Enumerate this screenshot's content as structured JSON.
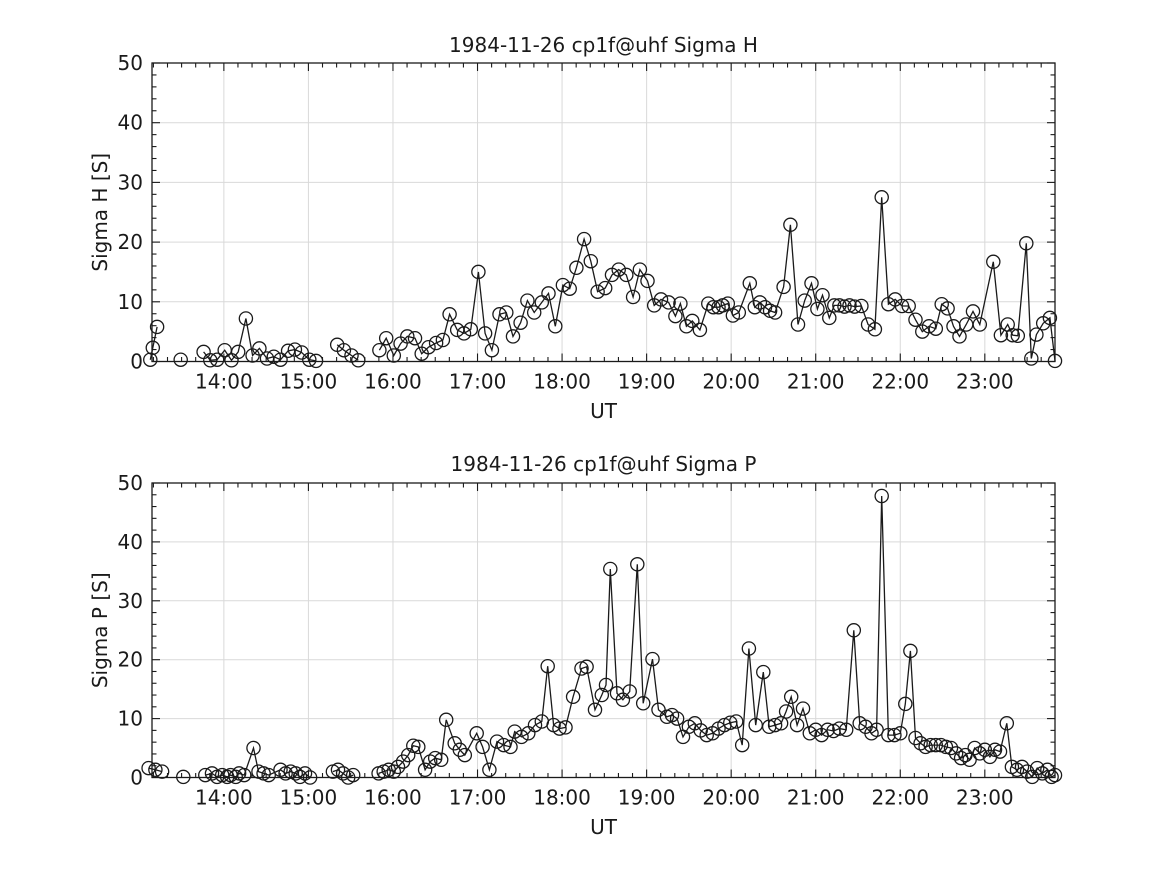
{
  "figure": {
    "background": "#ffffff",
    "x_axis_label": "UT",
    "x_tick_labels": [
      "14:00",
      "15:00",
      "16:00",
      "17:00",
      "18:00",
      "19:00",
      "20:00",
      "21:00",
      "22:00",
      "23:00"
    ],
    "y_tick_labels": [
      "0",
      "10",
      "20",
      "30",
      "40",
      "50"
    ]
  },
  "chart_data": [
    {
      "type": "line",
      "title": "1984-11-26  cp1f@uhf Sigma H",
      "xlabel": "UT",
      "ylabel": "Sigma H [S]",
      "xlim": [
        13.15,
        23.83
      ],
      "ylim": [
        0,
        50
      ],
      "x_ticks": [
        14,
        15,
        16,
        17,
        18,
        19,
        20,
        21,
        22,
        23
      ],
      "x_tick_labels": [
        "14:00",
        "15:00",
        "16:00",
        "17:00",
        "18:00",
        "19:00",
        "20:00",
        "21:00",
        "22:00",
        "23:00"
      ],
      "y_ticks": [
        0,
        10,
        20,
        30,
        40,
        50
      ],
      "y_tick_labels": [
        "0",
        "10",
        "20",
        "30",
        "40",
        "50"
      ],
      "grid": true,
      "legend": "none",
      "marker": "open-circle",
      "line_color": "#1a1a1a",
      "grid_color": "#d9d9d9",
      "points": [
        [
          13.13,
          0.3
        ],
        [
          13.16,
          2.3
        ],
        [
          13.21,
          5.8
        ],
        [
          13.35,
          null
        ],
        [
          13.49,
          0.3
        ],
        [
          13.62,
          null
        ],
        [
          13.76,
          1.6
        ],
        [
          13.84,
          0.2
        ],
        [
          13.92,
          0.3
        ],
        [
          14.01,
          1.9
        ],
        [
          14.09,
          0.2
        ],
        [
          14.17,
          1.6
        ],
        [
          14.26,
          7.2
        ],
        [
          14.34,
          1.0
        ],
        [
          14.42,
          2.2
        ],
        [
          14.51,
          0.5
        ],
        [
          14.59,
          0.8
        ],
        [
          14.67,
          0.3
        ],
        [
          14.76,
          1.8
        ],
        [
          14.84,
          2.0
        ],
        [
          14.92,
          1.5
        ],
        [
          15.01,
          0.3
        ],
        [
          15.09,
          0.1
        ],
        [
          15.2,
          null
        ],
        [
          15.34,
          2.8
        ],
        [
          15.42,
          1.9
        ],
        [
          15.51,
          1.0
        ],
        [
          15.59,
          0.2
        ],
        [
          15.7,
          null
        ],
        [
          15.84,
          1.9
        ],
        [
          15.92,
          3.9
        ],
        [
          16.01,
          1.0
        ],
        [
          16.09,
          3.0
        ],
        [
          16.17,
          4.2
        ],
        [
          16.26,
          3.9
        ],
        [
          16.34,
          1.3
        ],
        [
          16.42,
          2.4
        ],
        [
          16.51,
          3.1
        ],
        [
          16.59,
          3.6
        ],
        [
          16.67,
          7.9
        ],
        [
          16.76,
          5.3
        ],
        [
          16.84,
          4.7
        ],
        [
          16.92,
          5.4
        ],
        [
          17.01,
          15.0
        ],
        [
          17.09,
          4.7
        ],
        [
          17.17,
          1.9
        ],
        [
          17.26,
          7.9
        ],
        [
          17.34,
          8.2
        ],
        [
          17.42,
          4.2
        ],
        [
          17.51,
          6.5
        ],
        [
          17.59,
          10.2
        ],
        [
          17.67,
          8.2
        ],
        [
          17.76,
          9.9
        ],
        [
          17.84,
          11.4
        ],
        [
          17.92,
          5.9
        ],
        [
          18.01,
          12.8
        ],
        [
          18.09,
          12.2
        ],
        [
          18.17,
          15.7
        ],
        [
          18.26,
          20.5
        ],
        [
          18.34,
          16.8
        ],
        [
          18.42,
          11.7
        ],
        [
          18.51,
          12.3
        ],
        [
          18.59,
          14.5
        ],
        [
          18.67,
          15.4
        ],
        [
          18.76,
          14.5
        ],
        [
          18.84,
          10.8
        ],
        [
          18.92,
          15.4
        ],
        [
          19.01,
          13.5
        ],
        [
          19.09,
          9.4
        ],
        [
          19.17,
          10.4
        ],
        [
          19.26,
          9.9
        ],
        [
          19.34,
          7.6
        ],
        [
          19.4,
          9.7
        ],
        [
          19.47,
          5.9
        ],
        [
          19.54,
          6.8
        ],
        [
          19.63,
          5.3
        ],
        [
          19.73,
          9.7
        ],
        [
          19.79,
          9.1
        ],
        [
          19.85,
          9.1
        ],
        [
          19.9,
          9.4
        ],
        [
          19.96,
          9.7
        ],
        [
          20.02,
          7.7
        ],
        [
          20.09,
          8.2
        ],
        [
          20.22,
          13.1
        ],
        [
          20.28,
          9.1
        ],
        [
          20.34,
          9.9
        ],
        [
          20.4,
          9.1
        ],
        [
          20.46,
          8.5
        ],
        [
          20.52,
          8.2
        ],
        [
          20.62,
          12.5
        ],
        [
          20.7,
          22.9
        ],
        [
          20.79,
          6.2
        ],
        [
          20.87,
          10.2
        ],
        [
          20.95,
          13.1
        ],
        [
          21.02,
          8.8
        ],
        [
          21.08,
          11.1
        ],
        [
          21.16,
          7.3
        ],
        [
          21.22,
          9.4
        ],
        [
          21.28,
          9.4
        ],
        [
          21.34,
          9.2
        ],
        [
          21.4,
          9.4
        ],
        [
          21.46,
          9.2
        ],
        [
          21.54,
          9.3
        ],
        [
          21.62,
          6.2
        ],
        [
          21.7,
          5.4
        ],
        [
          21.78,
          27.5
        ],
        [
          21.86,
          9.6
        ],
        [
          21.94,
          10.4
        ],
        [
          22.02,
          9.3
        ],
        [
          22.1,
          9.3
        ],
        [
          22.18,
          7.0
        ],
        [
          22.26,
          5.0
        ],
        [
          22.34,
          5.9
        ],
        [
          22.42,
          5.5
        ],
        [
          22.49,
          9.6
        ],
        [
          22.56,
          8.9
        ],
        [
          22.63,
          5.9
        ],
        [
          22.7,
          4.2
        ],
        [
          22.78,
          6.2
        ],
        [
          22.86,
          8.4
        ],
        [
          22.94,
          6.2
        ],
        [
          23.1,
          16.7
        ],
        [
          23.19,
          4.4
        ],
        [
          23.27,
          6.2
        ],
        [
          23.33,
          4.4
        ],
        [
          23.39,
          4.3
        ],
        [
          23.49,
          19.8
        ],
        [
          23.55,
          0.5
        ],
        [
          23.61,
          4.5
        ],
        [
          23.69,
          6.4
        ],
        [
          23.77,
          7.3
        ],
        [
          23.83,
          0.1
        ]
      ]
    },
    {
      "type": "line",
      "title": "1984-11-26  cp1f@uhf Sigma P",
      "xlabel": "UT",
      "ylabel": "Sigma P [S]",
      "xlim": [
        13.15,
        23.83
      ],
      "ylim": [
        0,
        50
      ],
      "x_ticks": [
        14,
        15,
        16,
        17,
        18,
        19,
        20,
        21,
        22,
        23
      ],
      "x_tick_labels": [
        "14:00",
        "15:00",
        "16:00",
        "17:00",
        "18:00",
        "19:00",
        "20:00",
        "21:00",
        "22:00",
        "23:00"
      ],
      "y_ticks": [
        0,
        10,
        20,
        30,
        40,
        50
      ],
      "y_tick_labels": [
        "0",
        "10",
        "20",
        "30",
        "40",
        "50"
      ],
      "grid": true,
      "legend": "none",
      "marker": "open-circle",
      "line_color": "#1a1a1a",
      "grid_color": "#d9d9d9",
      "points": [
        [
          13.11,
          1.6
        ],
        [
          13.19,
          1.3
        ],
        [
          13.27,
          1.0
        ],
        [
          13.4,
          null
        ],
        [
          13.52,
          0.1
        ],
        [
          13.64,
          null
        ],
        [
          13.78,
          0.4
        ],
        [
          13.86,
          0.7
        ],
        [
          13.92,
          0.1
        ],
        [
          13.98,
          0.4
        ],
        [
          14.04,
          0.1
        ],
        [
          14.08,
          0.4
        ],
        [
          14.14,
          0.1
        ],
        [
          14.18,
          0.7
        ],
        [
          14.24,
          0.4
        ],
        [
          14.35,
          5.0
        ],
        [
          14.41,
          1.0
        ],
        [
          14.47,
          0.7
        ],
        [
          14.53,
          0.4
        ],
        [
          14.67,
          1.3
        ],
        [
          14.73,
          0.7
        ],
        [
          14.79,
          1.0
        ],
        [
          14.85,
          0.7
        ],
        [
          14.9,
          0.1
        ],
        [
          14.96,
          0.7
        ],
        [
          15.02,
          0.0
        ],
        [
          15.15,
          null
        ],
        [
          15.29,
          1.0
        ],
        [
          15.35,
          1.3
        ],
        [
          15.41,
          0.7
        ],
        [
          15.47,
          0.0
        ],
        [
          15.53,
          0.4
        ],
        [
          15.68,
          null
        ],
        [
          15.83,
          0.7
        ],
        [
          15.89,
          1.0
        ],
        [
          15.95,
          1.3
        ],
        [
          16.01,
          1.0
        ],
        [
          16.06,
          1.8
        ],
        [
          16.12,
          2.7
        ],
        [
          16.18,
          3.8
        ],
        [
          16.24,
          5.4
        ],
        [
          16.3,
          5.2
        ],
        [
          16.38,
          1.3
        ],
        [
          16.44,
          2.7
        ],
        [
          16.5,
          3.3
        ],
        [
          16.57,
          3.0
        ],
        [
          16.63,
          9.8
        ],
        [
          16.73,
          5.8
        ],
        [
          16.79,
          4.7
        ],
        [
          16.85,
          3.8
        ],
        [
          16.99,
          7.5
        ],
        [
          17.06,
          5.2
        ],
        [
          17.14,
          1.3
        ],
        [
          17.23,
          6.1
        ],
        [
          17.31,
          5.5
        ],
        [
          17.39,
          5.2
        ],
        [
          17.44,
          7.8
        ],
        [
          17.52,
          6.9
        ],
        [
          17.6,
          7.5
        ],
        [
          17.68,
          8.9
        ],
        [
          17.76,
          9.5
        ],
        [
          17.83,
          18.9
        ],
        [
          17.9,
          8.9
        ],
        [
          17.97,
          8.3
        ],
        [
          18.04,
          8.5
        ],
        [
          18.13,
          13.7
        ],
        [
          18.23,
          18.5
        ],
        [
          18.29,
          18.8
        ],
        [
          18.39,
          11.5
        ],
        [
          18.47,
          14.0
        ],
        [
          18.52,
          15.7
        ],
        [
          18.57,
          35.4
        ],
        [
          18.65,
          14.3
        ],
        [
          18.72,
          13.2
        ],
        [
          18.8,
          14.6
        ],
        [
          18.89,
          36.2
        ],
        [
          18.96,
          12.6
        ],
        [
          19.07,
          20.1
        ],
        [
          19.14,
          11.5
        ],
        [
          19.24,
          10.3
        ],
        [
          19.3,
          10.6
        ],
        [
          19.36,
          10.0
        ],
        [
          19.43,
          6.9
        ],
        [
          19.5,
          8.6
        ],
        [
          19.57,
          9.2
        ],
        [
          19.64,
          8.0
        ],
        [
          19.71,
          7.2
        ],
        [
          19.78,
          7.5
        ],
        [
          19.85,
          8.3
        ],
        [
          19.92,
          8.9
        ],
        [
          19.99,
          9.3
        ],
        [
          20.06,
          9.5
        ],
        [
          20.13,
          5.5
        ],
        [
          20.21,
          21.9
        ],
        [
          20.29,
          8.9
        ],
        [
          20.38,
          17.9
        ],
        [
          20.45,
          8.6
        ],
        [
          20.52,
          8.9
        ],
        [
          20.59,
          9.2
        ],
        [
          20.65,
          11.2
        ],
        [
          20.71,
          13.7
        ],
        [
          20.78,
          8.9
        ],
        [
          20.85,
          11.7
        ],
        [
          20.93,
          7.5
        ],
        [
          21.0,
          8.1
        ],
        [
          21.07,
          7.2
        ],
        [
          21.14,
          8.1
        ],
        [
          21.21,
          7.9
        ],
        [
          21.28,
          8.3
        ],
        [
          21.36,
          8.1
        ],
        [
          21.45,
          25.0
        ],
        [
          21.52,
          9.2
        ],
        [
          21.59,
          8.6
        ],
        [
          21.66,
          7.5
        ],
        [
          21.72,
          8.1
        ],
        [
          21.78,
          47.8
        ],
        [
          21.86,
          7.2
        ],
        [
          21.93,
          7.2
        ],
        [
          22.0,
          7.5
        ],
        [
          22.06,
          12.5
        ],
        [
          22.12,
          21.5
        ],
        [
          22.18,
          6.7
        ],
        [
          22.24,
          5.8
        ],
        [
          22.3,
          5.2
        ],
        [
          22.36,
          5.5
        ],
        [
          22.42,
          5.5
        ],
        [
          22.48,
          5.5
        ],
        [
          22.54,
          5.2
        ],
        [
          22.6,
          5.0
        ],
        [
          22.66,
          4.1
        ],
        [
          22.72,
          3.3
        ],
        [
          22.77,
          3.8
        ],
        [
          22.82,
          3.0
        ],
        [
          22.88,
          5.0
        ],
        [
          22.94,
          4.1
        ],
        [
          23.0,
          4.7
        ],
        [
          23.06,
          3.5
        ],
        [
          23.12,
          4.7
        ],
        [
          23.18,
          4.4
        ],
        [
          23.26,
          9.2
        ],
        [
          23.32,
          1.8
        ],
        [
          23.38,
          1.3
        ],
        [
          23.44,
          1.8
        ],
        [
          23.5,
          1.0
        ],
        [
          23.56,
          0.1
        ],
        [
          23.62,
          1.6
        ],
        [
          23.68,
          0.7
        ],
        [
          23.74,
          1.3
        ],
        [
          23.79,
          0.1
        ],
        [
          23.83,
          0.4
        ]
      ]
    }
  ]
}
